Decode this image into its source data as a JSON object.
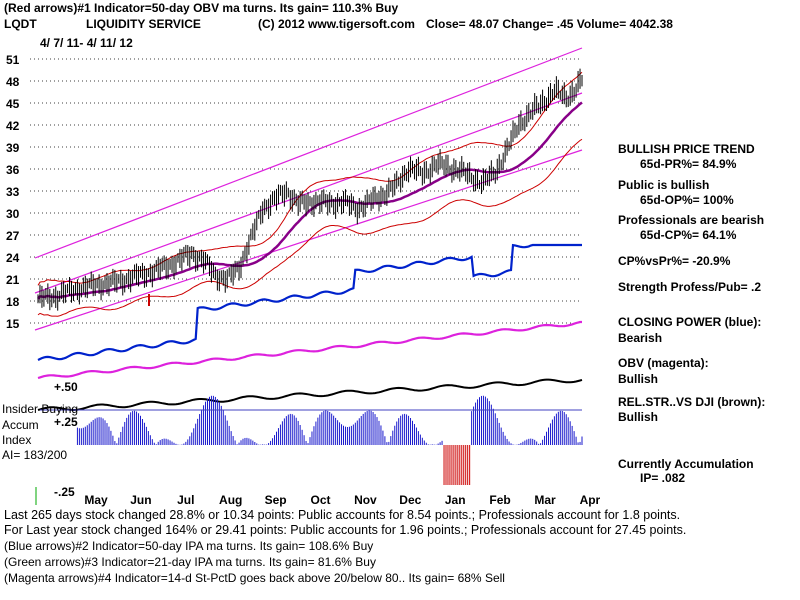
{
  "header": {
    "line1": "(Red arrows)#1 Indicator=50-day OBV ma turns. Its gain= 110.3% Buy",
    "symbol": "LQDT",
    "company": "LIQUIDITY SERVICE",
    "copyright": "(C) 2012 www.tigersoft.com",
    "quote": "Close= 48.07 Change= .45 Volume= 4042.38",
    "date_range": "4/ 7/ 11- 4/ 11/ 12"
  },
  "right_panel": {
    "trend_title": "BULLISH PRICE TREND",
    "trend_value": "65d-PR%= 84.9%",
    "public_title": "Public is bullish",
    "public_value": "65d-OP%= 100%",
    "pro_title": "Professionals are bearish",
    "pro_value": "65d-CP%= 64.1%",
    "cpvspr": "CP%vsPr%= -20.9%",
    "strength": "Strength Profess/Pub= .2",
    "cp_title": "CLOSING POWER (blue):",
    "cp_value": "Bearish",
    "obv_title": "OBV (magenta):",
    "obv_value": "Bullish",
    "rel_title": "REL.STR..VS DJI (brown):",
    "rel_value": "Bullish",
    "accum_title": "Currently Accumulation",
    "accum_value": "IP= .082"
  },
  "indicator_labels": {
    "insider": "Insider Buying",
    "accum": "Accum",
    "index": "Index",
    "ai": "AI= 183/200",
    "plus50": "+.50",
    "plus25": "+.25",
    "minus25": "-.25"
  },
  "footer": {
    "line1": "Last 265 days stock changed 28.8% or 10.34 points: Public accounts for 8.54 points.; Professionals account for 1.8 points.",
    "line2": "For Last year stock changed 164% or 29.41 points: Public accounts for 1.96 points.; Professionals account for 27.45 points.",
    "line3": "(Blue arrows)#2 Indicator=50-day IPA ma turns. Its gain= 108.6% Buy",
    "line4": "(Green arrows)#3 Indicator=21-day IPA ma turns. Its gain= 81.6% Buy",
    "line5": "(Magenta arrows)#4 Indicator=14-d St-PctD goes back above 20/below 80.. Its gain= 68% Sell"
  },
  "colors": {
    "price": "#000000",
    "closing_power": "#0022cc",
    "obv": "#dd22dd",
    "rel_str": "#000000",
    "channel": "#dd22dd",
    "bands": "#cc0000",
    "ma": "#880088",
    "accum": "#1a1acc",
    "distrib": "#cc0000"
  },
  "chart_data": {
    "type": "line",
    "title": "LQDT LIQUIDITY SERVICE",
    "xlabel": "",
    "ylabel": "",
    "ylim": [
      15,
      51
    ],
    "y_ticks": [
      51,
      48,
      45,
      42,
      39,
      36,
      33,
      30,
      27,
      24,
      21,
      18,
      15
    ],
    "x_ticks": [
      "May",
      "Jun",
      "Jul",
      "Aug",
      "Sep",
      "Oct",
      "Nov",
      "Dec",
      "Jan",
      "Feb",
      "Mar",
      "Apr"
    ],
    "close_anchors": [
      [
        0,
        18.3
      ],
      [
        8,
        18.6
      ],
      [
        15,
        19.2
      ],
      [
        22,
        19.8
      ],
      [
        30,
        20.2
      ],
      [
        40,
        20.6
      ],
      [
        50,
        21.4
      ],
      [
        58,
        22.0
      ],
      [
        65,
        22.7
      ],
      [
        72,
        23.6
      ],
      [
        78,
        24.5
      ],
      [
        84,
        23.5
      ],
      [
        90,
        21.6
      ],
      [
        96,
        20.9
      ],
      [
        102,
        22.6
      ],
      [
        108,
        26.4
      ],
      [
        114,
        30.7
      ],
      [
        120,
        31.7
      ],
      [
        126,
        33.1
      ],
      [
        132,
        31.2
      ],
      [
        140,
        31.6
      ],
      [
        148,
        31.3
      ],
      [
        155,
        31.5
      ],
      [
        162,
        30.6
      ],
      [
        168,
        31.5
      ],
      [
        175,
        32.5
      ],
      [
        182,
        33.8
      ],
      [
        188,
        36.2
      ],
      [
        195,
        35.3
      ],
      [
        202,
        36.7
      ],
      [
        208,
        36.3
      ],
      [
        214,
        35.8
      ],
      [
        220,
        34.9
      ],
      [
        226,
        34.1
      ],
      [
        232,
        35.6
      ],
      [
        238,
        38.6
      ],
      [
        244,
        42.2
      ],
      [
        250,
        43.6
      ],
      [
        256,
        45.1
      ],
      [
        262,
        46.6
      ],
      [
        268,
        45.8
      ],
      [
        272,
        46.6
      ],
      [
        276,
        48.1
      ]
    ]
  }
}
